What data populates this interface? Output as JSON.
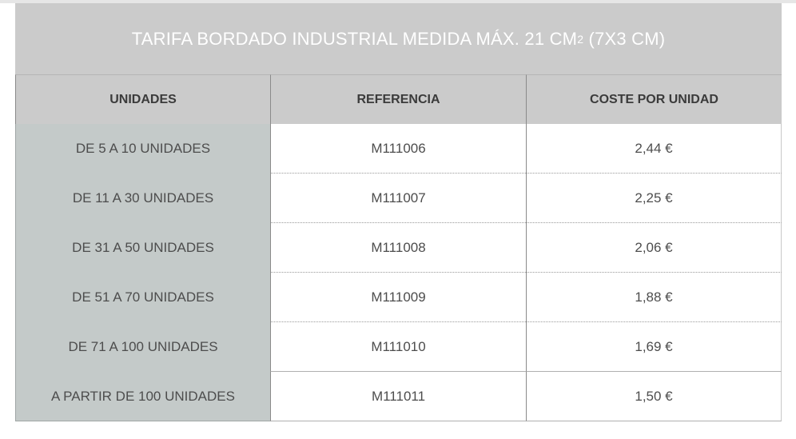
{
  "title": {
    "main": "TARIFA BORDADO INDUSTRIAL  MEDIDA MÁX. 21 CM",
    "superscript": "2",
    "suffix": " (7X3 CM)"
  },
  "columns": [
    "UNIDADES",
    "REFERENCIA",
    "COSTE POR UNIDAD"
  ],
  "rows": [
    {
      "units": "DE 5 A 10 UNIDADES",
      "reference": "M111006",
      "cost": "2,44 €"
    },
    {
      "units": "DE 11 A 30 UNIDADES",
      "reference": "M111007",
      "cost": "2,25 €"
    },
    {
      "units": "DE 31 A 50 UNIDADES",
      "reference": "M111008",
      "cost": "2,06 €"
    },
    {
      "units": "DE 51 A 70 UNIDADES",
      "reference": "M111009",
      "cost": "1,88 €"
    },
    {
      "units": "DE 71 A 100 UNIDADES",
      "reference": "M111010",
      "cost": "1,69 €"
    },
    {
      "units": "A PARTIR DE 100 UNIDADES",
      "reference": "M111011",
      "cost": "1,50 €"
    }
  ],
  "colors": {
    "title_bg": "#cbcbcb",
    "header_bg": "#cbcbcb",
    "units_col_bg": "#c4cac9",
    "text": "#4d4d4d"
  }
}
